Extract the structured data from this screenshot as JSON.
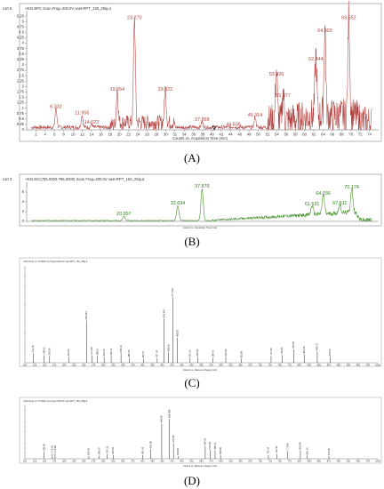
{
  "panels": {
    "a": "(A)",
    "b": "(B)",
    "c": "(C)",
    "d": "(D)"
  },
  "chart_data": [
    {
      "id": "A",
      "type": "line",
      "title": "+ESI BPC Scan Frag=200.0V vast-RPT_150_25lg.d",
      "y_exponent": "x10 5",
      "xlabel": "Counts vs. Acquisition Time (min)",
      "xlim": [
        0,
        76
      ],
      "ylim": [
        0,
        5.5
      ],
      "xticks": [
        2,
        4,
        6,
        8,
        10,
        12,
        14,
        16,
        18,
        20,
        22,
        24,
        26,
        28,
        30,
        32,
        34,
        36,
        38,
        40,
        42,
        44,
        46,
        48,
        50,
        52,
        54,
        56,
        58,
        60,
        62,
        64,
        66,
        68,
        70,
        72,
        74
      ],
      "yticks": [
        0,
        0.25,
        0.5,
        0.75,
        1,
        1.25,
        1.5,
        1.75,
        2,
        2.25,
        2.5,
        2.75,
        3,
        3.25,
        3.5,
        3.75,
        4,
        4.25,
        4.5,
        4.75,
        5,
        5.25
      ],
      "line_color": "#b0413e",
      "peaks": [
        {
          "x": 6.332,
          "y": 0.95,
          "label": "6.332"
        },
        {
          "x": 11.956,
          "y": 0.65,
          "label": "11.956"
        },
        {
          "x": 14.022,
          "y": 0.22,
          "label": "14.022"
        },
        {
          "x": 19.554,
          "y": 1.75,
          "label": "19.554"
        },
        {
          "x": 23.27,
          "y": 5.05,
          "label": "23.270"
        },
        {
          "x": 27.193,
          "y": 0.15,
          "label": "27.193"
        },
        {
          "x": 29.922,
          "y": 1.75,
          "label": "29.922"
        },
        {
          "x": 37.868,
          "y": 0.35,
          "label": "37.868"
        },
        {
          "x": 44.636,
          "y": 0.12,
          "label": "44.636"
        },
        {
          "x": 49.314,
          "y": 0.55,
          "label": "49.314"
        },
        {
          "x": 53.926,
          "y": 2.45,
          "label": "53.926"
        },
        {
          "x": 55.377,
          "y": 1.45,
          "label": "55.377"
        },
        {
          "x": 62.444,
          "y": 3.15,
          "label": "62.444"
        },
        {
          "x": 64.393,
          "y": 4.45,
          "label": "64.393"
        },
        {
          "x": 69.552,
          "y": 5.05,
          "label": "69.552"
        }
      ]
    },
    {
      "id": "B",
      "type": "line",
      "title": "+ESI EIC(785.0000-786.0000) Scan Frag=200.0V vast-RPT_150_25lg.d",
      "y_exponent": "x10 3",
      "xlabel": "Counts vs. Acquisition Time (min)",
      "xlim": [
        0,
        76
      ],
      "ylim": [
        0,
        8
      ],
      "yticks": [
        0,
        2,
        4,
        6
      ],
      "line_color": "#3a8a1e",
      "peaks": [
        {
          "x": 20.997,
          "y": 1.0,
          "label": "20.997"
        },
        {
          "x": 32.634,
          "y": 3.2,
          "label": "32.634"
        },
        {
          "x": 37.876,
          "y": 6.6,
          "label": "37.876"
        },
        {
          "x": 61.631,
          "y": 3.0,
          "label": "61.631"
        },
        {
          "x": 64.036,
          "y": 5.2,
          "label": "64.036"
        },
        {
          "x": 67.611,
          "y": 3.2,
          "label": "67.611"
        },
        {
          "x": 70.174,
          "y": 6.5,
          "label": "70.174"
        }
      ]
    },
    {
      "id": "C",
      "type": "bar",
      "title": "+ESI Scan (rt: 37.829 min) Frag=200.0V vast-RPT_150_25lg.d",
      "xlabel": "Counts vs. Mass-to-Charge (m/z)",
      "xlim": [
        100,
        1000
      ],
      "ylim": [
        0,
        1
      ],
      "sticks": [
        {
          "mz": 121.05,
          "rel": 0.1,
          "label": "121.05"
        },
        {
          "mz": 149.02,
          "rel": 0.08,
          "label": "149.02"
        },
        {
          "mz": 163.04,
          "rel": 0.07,
          "label": "163.04"
        },
        {
          "mz": 212.09,
          "rel": 0.06,
          "label": "212.09"
        },
        {
          "mz": 256.96,
          "rel": 0.44,
          "label": "256.961"
        },
        {
          "mz": 270.98,
          "rel": 0.08,
          "label": "270.98"
        },
        {
          "mz": 285.07,
          "rel": 0.07,
          "label": "285.07"
        },
        {
          "mz": 302.14,
          "rel": 0.06,
          "label": "302.14"
        },
        {
          "mz": 320.11,
          "rel": 0.07,
          "label": "320.11"
        },
        {
          "mz": 345.14,
          "rel": 0.1,
          "label": "345.14"
        },
        {
          "mz": 366.2,
          "rel": 0.05,
          "label": "366.20"
        },
        {
          "mz": 402.37,
          "rel": 0.04,
          "label": "402.37"
        },
        {
          "mz": 437.43,
          "rel": 0.05,
          "label": "437.43"
        },
        {
          "mz": 454.99,
          "rel": 0.46,
          "label": "454.991"
        },
        {
          "mz": 466.05,
          "rel": 0.11,
          "label": "466.05"
        },
        {
          "mz": 477.0,
          "rel": 0.68,
          "label": "477.000"
        },
        {
          "mz": 488.92,
          "rel": 0.26,
          "label": "488.92"
        },
        {
          "mz": 521.3,
          "rel": 0.05,
          "label": "521.30"
        },
        {
          "mz": 540.62,
          "rel": 0.06,
          "label": "540.62"
        },
        {
          "mz": 580.01,
          "rel": 0.05,
          "label": "580.01"
        },
        {
          "mz": 612.4,
          "rel": 0.06,
          "label": "612.40"
        },
        {
          "mz": 652.6,
          "rel": 0.04,
          "label": "652.60"
        },
        {
          "mz": 727.9,
          "rel": 0.07,
          "label": "727.90"
        },
        {
          "mz": 755.8,
          "rel": 0.08,
          "label": "755.80"
        },
        {
          "mz": 785.5,
          "rel": 0.14,
          "label": "785.50"
        },
        {
          "mz": 812.3,
          "rel": 0.09,
          "label": "812.30"
        },
        {
          "mz": 845.7,
          "rel": 0.12,
          "label": "845.70"
        },
        {
          "mz": 878.2,
          "rel": 0.06,
          "label": "878.20"
        }
      ]
    },
    {
      "id": "D",
      "type": "bar",
      "title": "+ESI Scan (rt: 37.829 min) Frag=200.0V vast-RPT_150_25lg.d",
      "xlabel": "Counts vs. Mass-to-Charge (m/z)",
      "xlim": [
        100,
        1000
      ],
      "ylim": [
        0,
        1
      ],
      "sticks": [
        {
          "mz": 148.93,
          "rel": 0.13,
          "label": "148.93"
        },
        {
          "mz": 170.02,
          "rel": 0.1,
          "label": "170.02"
        },
        {
          "mz": 176.98,
          "rel": 0.1,
          "label": "176.98"
        },
        {
          "mz": 263.05,
          "rel": 0.05,
          "label": "263.05"
        },
        {
          "mz": 290.0,
          "rel": 0.06,
          "label": "290.00"
        },
        {
          "mz": 310.11,
          "rel": 0.09,
          "label": "310.11"
        },
        {
          "mz": 325.02,
          "rel": 0.07,
          "label": "325.02"
        },
        {
          "mz": 401.05,
          "rel": 0.07,
          "label": "401.05"
        },
        {
          "mz": 420.98,
          "rel": 0.18,
          "label": "420.98"
        },
        {
          "mz": 448.96,
          "rel": 0.66,
          "label": "448.96"
        },
        {
          "mz": 468.96,
          "rel": 0.75,
          "label": "468.966"
        },
        {
          "mz": 478.96,
          "rel": 0.29,
          "label": "478.96"
        },
        {
          "mz": 490.4,
          "rel": 0.05,
          "label": "490.40"
        },
        {
          "mz": 560.01,
          "rel": 0.24,
          "label": "560.01"
        },
        {
          "mz": 572.3,
          "rel": 0.17,
          "label": "572.30"
        },
        {
          "mz": 585.1,
          "rel": 0.16,
          "label": "585.10"
        },
        {
          "mz": 598.9,
          "rel": 0.07,
          "label": "598.90"
        },
        {
          "mz": 721.02,
          "rel": 0.07,
          "label": "721.02"
        },
        {
          "mz": 742.3,
          "rel": 0.09,
          "label": "742.30"
        },
        {
          "mz": 770.6,
          "rel": 0.15,
          "label": "770.60"
        },
        {
          "mz": 802.66,
          "rel": 0.16,
          "label": "802.66"
        },
        {
          "mz": 820.1,
          "rel": 0.06,
          "label": "820.10"
        },
        {
          "mz": 875.4,
          "rel": 0.05,
          "label": "875.40"
        }
      ]
    }
  ]
}
